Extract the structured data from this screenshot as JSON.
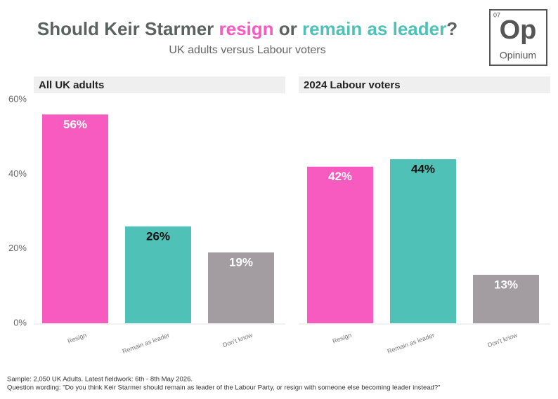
{
  "header": {
    "title_parts": [
      {
        "text": "Should Keir Starmer ",
        "color": "#5b6260"
      },
      {
        "text": "resign",
        "color": "#f75bbf"
      },
      {
        "text": " or ",
        "color": "#5b6260"
      },
      {
        "text": "remain as leader",
        "color": "#4fc1b6"
      },
      {
        "text": "?",
        "color": "#5b6260"
      }
    ],
    "subtitle": "UK adults versus Labour voters"
  },
  "logo": {
    "number": "07",
    "symbol": "Op",
    "name": "Opinium"
  },
  "chart_data": [
    {
      "type": "bar",
      "title": "All UK adults",
      "categories": [
        "Resign",
        "Remain as leader",
        "Don't know"
      ],
      "values": [
        56,
        26,
        19
      ],
      "value_labels": [
        "56%",
        "26%",
        "19%"
      ],
      "colors": [
        "#f75bbf",
        "#4fc1b6",
        "#a39ca1"
      ],
      "label_colors": [
        "#ffffff",
        "#111111",
        "#ffffff"
      ],
      "ylim": [
        0,
        60
      ],
      "yticks": [
        {
          "value": 0,
          "label": "0%"
        },
        {
          "value": 20,
          "label": "20%"
        },
        {
          "value": 40,
          "label": "40%"
        },
        {
          "value": 60,
          "label": "60%"
        }
      ]
    },
    {
      "type": "bar",
      "title": "2024 Labour voters",
      "categories": [
        "Resign",
        "Remain as leader",
        "Don't know"
      ],
      "values": [
        42,
        44,
        13
      ],
      "value_labels": [
        "42%",
        "44%",
        "13%"
      ],
      "colors": [
        "#f75bbf",
        "#4fc1b6",
        "#a39ca1"
      ],
      "label_colors": [
        "#ffffff",
        "#111111",
        "#ffffff"
      ],
      "ylim": [
        0,
        60
      ]
    }
  ],
  "footer": {
    "sample": "Sample: 2,050 UK Adults. Latest fieldwork: 6th - 8th May 2026.",
    "question": "Question wording: \"Do you think Keir Starmer should remain as leader of the Labour Party, or resign with someone else becoming leader instead?\""
  }
}
